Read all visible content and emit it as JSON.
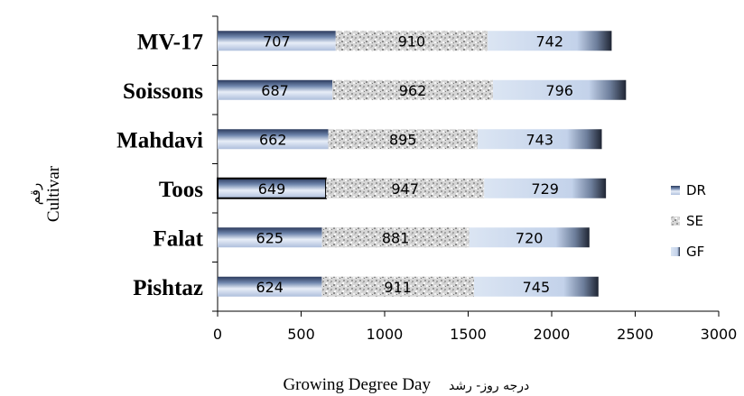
{
  "chart_data": {
    "type": "bar",
    "orientation": "horizontal",
    "stacked": true,
    "categories": [
      "MV-17",
      "Soissons",
      "Mahdavi",
      "Toos",
      "Falat",
      "Pishtaz"
    ],
    "series": [
      {
        "name": "DR",
        "values": [
          707,
          687,
          662,
          649,
          625,
          624
        ]
      },
      {
        "name": "SE",
        "values": [
          910,
          962,
          895,
          947,
          881,
          911
        ]
      },
      {
        "name": "GF",
        "values": [
          742,
          796,
          743,
          729,
          720,
          745
        ]
      }
    ],
    "xlabel": "Growing Degree Day",
    "xlabel_fa": "درجه روز- رشد",
    "ylabel": "Cultivar",
    "ylabel_fa": "رقم",
    "xlim": [
      0,
      3000
    ],
    "xticks": [
      "0",
      "500",
      "1000",
      "1500",
      "2000",
      "2500",
      "3000"
    ],
    "legend_position": "right",
    "grid": false
  }
}
